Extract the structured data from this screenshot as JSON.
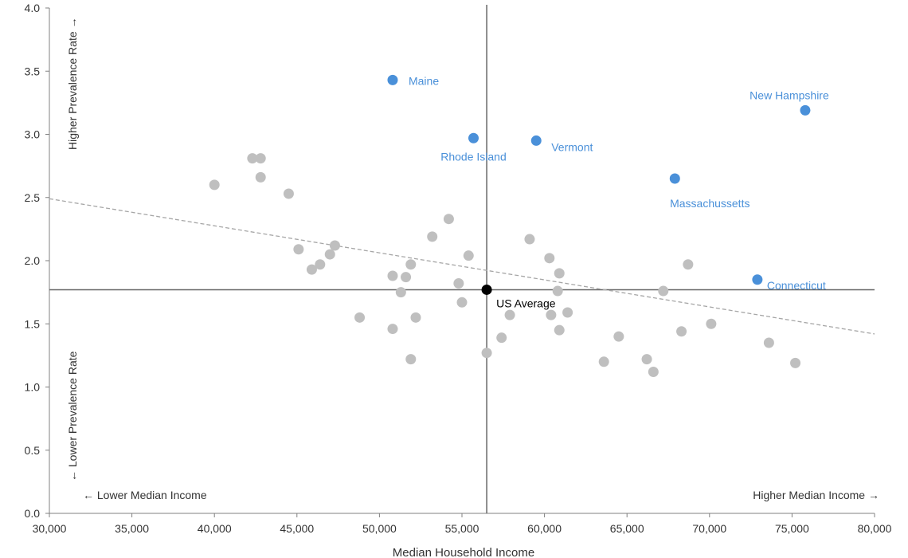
{
  "chart_data": {
    "type": "scatter",
    "xlabel": "Median Household  Income",
    "ylabel": "",
    "xlim": [
      30000,
      80000
    ],
    "ylim": [
      0.0,
      4.0
    ],
    "x_ticks": [
      30000,
      35000,
      40000,
      45000,
      50000,
      55000,
      60000,
      65000,
      70000,
      75000,
      80000
    ],
    "x_tick_labels": [
      "30,000",
      "35,000",
      "40,000",
      "45,000",
      "50,000",
      "55,000",
      "60,000",
      "65,000",
      "70,000",
      "75,000",
      "80,000"
    ],
    "y_ticks": [
      0,
      0.5,
      1,
      1.5,
      2,
      2.5,
      3,
      3.5,
      4
    ],
    "y_tick_labels": [
      "0.0",
      "0.5",
      "1.0",
      "1.5",
      "2.0",
      "2.5",
      "3.0",
      "3.5",
      "4.0"
    ],
    "grid": false,
    "quadrant_labels": {
      "left": "← Lower Median Income",
      "right": "Higher Median Income →",
      "top": "Higher Prevalence Rate →",
      "bottom": "← Lower Prevalence Rate"
    },
    "reference_lines": {
      "x": 56500,
      "y": 1.77
    },
    "trendline": {
      "x": [
        30000,
        80000
      ],
      "y": [
        2.49,
        1.42
      ],
      "style": "dashed"
    },
    "us_average": {
      "label": "US Average",
      "x": 56500,
      "y": 1.77,
      "color": "#000000"
    },
    "highlighted": {
      "color": "#4a90d9",
      "points": [
        {
          "label": "Maine",
          "x": 50800,
          "y": 3.43
        },
        {
          "label": "Rhode Island",
          "x": 55700,
          "y": 2.97
        },
        {
          "label": "Vermont",
          "x": 59500,
          "y": 2.95
        },
        {
          "label": "New Hampshire",
          "x": 75800,
          "y": 3.19
        },
        {
          "label": "Massachussetts",
          "x": 67900,
          "y": 2.65
        },
        {
          "label": "Connecticut",
          "x": 72900,
          "y": 1.85
        }
      ]
    },
    "other": {
      "color": "#bfbfbf",
      "points": [
        [
          40000,
          2.6
        ],
        [
          42300,
          2.81
        ],
        [
          42800,
          2.81
        ],
        [
          42800,
          2.66
        ],
        [
          44500,
          2.53
        ],
        [
          45100,
          2.09
        ],
        [
          45900,
          1.93
        ],
        [
          46400,
          1.97
        ],
        [
          47000,
          2.05
        ],
        [
          47300,
          2.12
        ],
        [
          48800,
          1.55
        ],
        [
          50800,
          1.88
        ],
        [
          50800,
          1.46
        ],
        [
          51300,
          1.75
        ],
        [
          51600,
          1.87
        ],
        [
          51900,
          1.97
        ],
        [
          51900,
          1.22
        ],
        [
          52200,
          1.55
        ],
        [
          53200,
          2.19
        ],
        [
          54200,
          2.33
        ],
        [
          54800,
          1.82
        ],
        [
          55000,
          1.67
        ],
        [
          55400,
          2.04
        ],
        [
          56500,
          1.27
        ],
        [
          57400,
          1.39
        ],
        [
          57900,
          1.57
        ],
        [
          59100,
          2.17
        ],
        [
          60300,
          2.02
        ],
        [
          60400,
          1.57
        ],
        [
          60800,
          1.76
        ],
        [
          60900,
          1.9
        ],
        [
          60900,
          1.45
        ],
        [
          61400,
          1.59
        ],
        [
          63600,
          1.2
        ],
        [
          64500,
          1.4
        ],
        [
          66200,
          1.22
        ],
        [
          66600,
          1.12
        ],
        [
          67200,
          1.76
        ],
        [
          68300,
          1.44
        ],
        [
          68700,
          1.97
        ],
        [
          70100,
          1.5
        ],
        [
          73600,
          1.35
        ],
        [
          75200,
          1.19
        ]
      ]
    }
  }
}
